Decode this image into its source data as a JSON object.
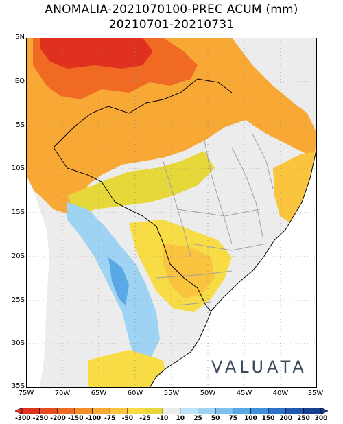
{
  "header": {
    "title_line1": "ANOMALIA-2021070100-PREC ACUM (mm)",
    "title_line2": "20210701-20210731"
  },
  "axes": {
    "lat_labels": [
      "5N",
      "EQ",
      "5S",
      "10S",
      "15S",
      "20S",
      "25S",
      "30S",
      "35S"
    ],
    "lon_labels": [
      "75W",
      "70W",
      "65W",
      "60W",
      "55W",
      "50W",
      "45W",
      "40W",
      "35W"
    ],
    "lon_range": [
      -75,
      -35
    ],
    "lat_range": [
      -35,
      5
    ],
    "grid": true,
    "grid_style": "dotted"
  },
  "logo": {
    "text": "VALUATA"
  },
  "colorbar": {
    "labels": [
      "-300",
      "-250",
      "-200",
      "-150",
      "-100",
      "-75",
      "-50",
      "-25",
      "-10",
      "10",
      "25",
      "50",
      "75",
      "100",
      "150",
      "200",
      "250",
      "300"
    ],
    "colors": [
      "#e0301e",
      "#ea4a22",
      "#f06a24",
      "#f58c2a",
      "#f8a834",
      "#fbc43e",
      "#f7dc46",
      "#e6d83a",
      "#ececec",
      "#bfe3f8",
      "#9ed3f4",
      "#7cc0ee",
      "#5aa8e6",
      "#3c8fdc",
      "#2a73c8",
      "#1f58b0",
      "#163f92"
    ]
  },
  "colors": {
    "land_neutral": "#ececec",
    "ocean": "#ffffff",
    "borders": "#000000",
    "state_borders": "#a0a0a0"
  }
}
